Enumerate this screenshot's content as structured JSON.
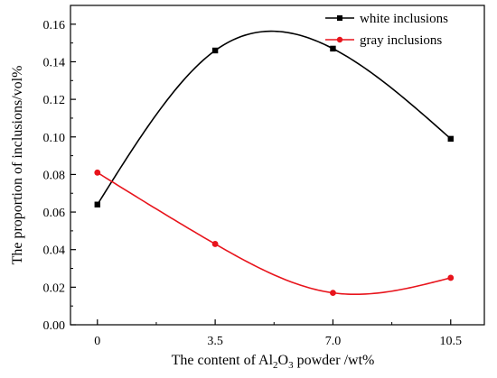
{
  "chart_data": {
    "type": "line",
    "title": "",
    "xlabel": {
      "prefix": "The content of Al",
      "sub1": "2",
      "mid": "O",
      "sub2": "3",
      "suffix": " powder /wt%"
    },
    "ylabel": "The proportion of inclusions/vol%",
    "categories": [
      "0",
      "3.5",
      "7.0",
      "10.5"
    ],
    "x": [
      0,
      3.5,
      7.0,
      10.5
    ],
    "xlim": [
      -0.8,
      11.5
    ],
    "ylim": [
      0,
      0.17
    ],
    "yticks": [
      "0.00",
      "0.02",
      "0.04",
      "0.06",
      "0.08",
      "0.10",
      "0.12",
      "0.14",
      "0.16"
    ],
    "ytick_values": [
      0,
      0.02,
      0.04,
      0.06,
      0.08,
      0.1,
      0.12,
      0.14,
      0.16
    ],
    "grid": false,
    "legend_position": "top-right",
    "series": [
      {
        "name": "white inclusions",
        "color": "#000000",
        "marker": "square",
        "values": [
          0.064,
          0.146,
          0.147,
          0.099
        ]
      },
      {
        "name": "gray inclusions",
        "color": "#e8141c",
        "marker": "circle",
        "values": [
          0.081,
          0.043,
          0.017,
          0.025
        ]
      }
    ]
  }
}
